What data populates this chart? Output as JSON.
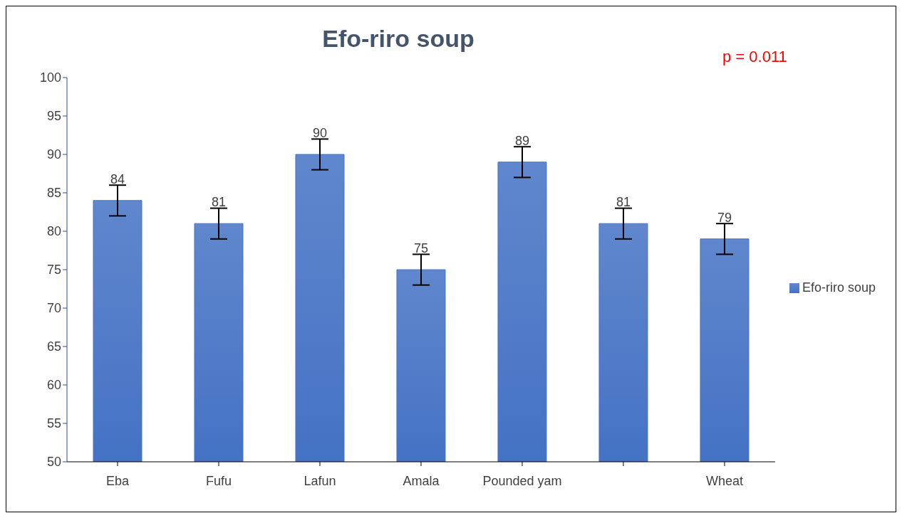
{
  "chart_data": {
    "type": "bar",
    "title": "Efo-riro soup",
    "categories": [
      "Eba",
      "Fufu",
      "Lafun",
      "Amala",
      "Pounded yam",
      null,
      "Wheat"
    ],
    "series": [
      {
        "name": "Efo-riro soup",
        "color": "#4472c4",
        "values": [
          84,
          81,
          90,
          75,
          89,
          81,
          79
        ],
        "errors": [
          2,
          2,
          2,
          2,
          2,
          2,
          2
        ]
      }
    ],
    "ylim": [
      50,
      100
    ],
    "yticks": [
      50,
      55,
      60,
      65,
      70,
      75,
      80,
      85,
      90,
      95,
      100
    ],
    "data_labels": true,
    "legend": "right",
    "grid": false,
    "annotations": [
      "p = 0.011"
    ]
  }
}
